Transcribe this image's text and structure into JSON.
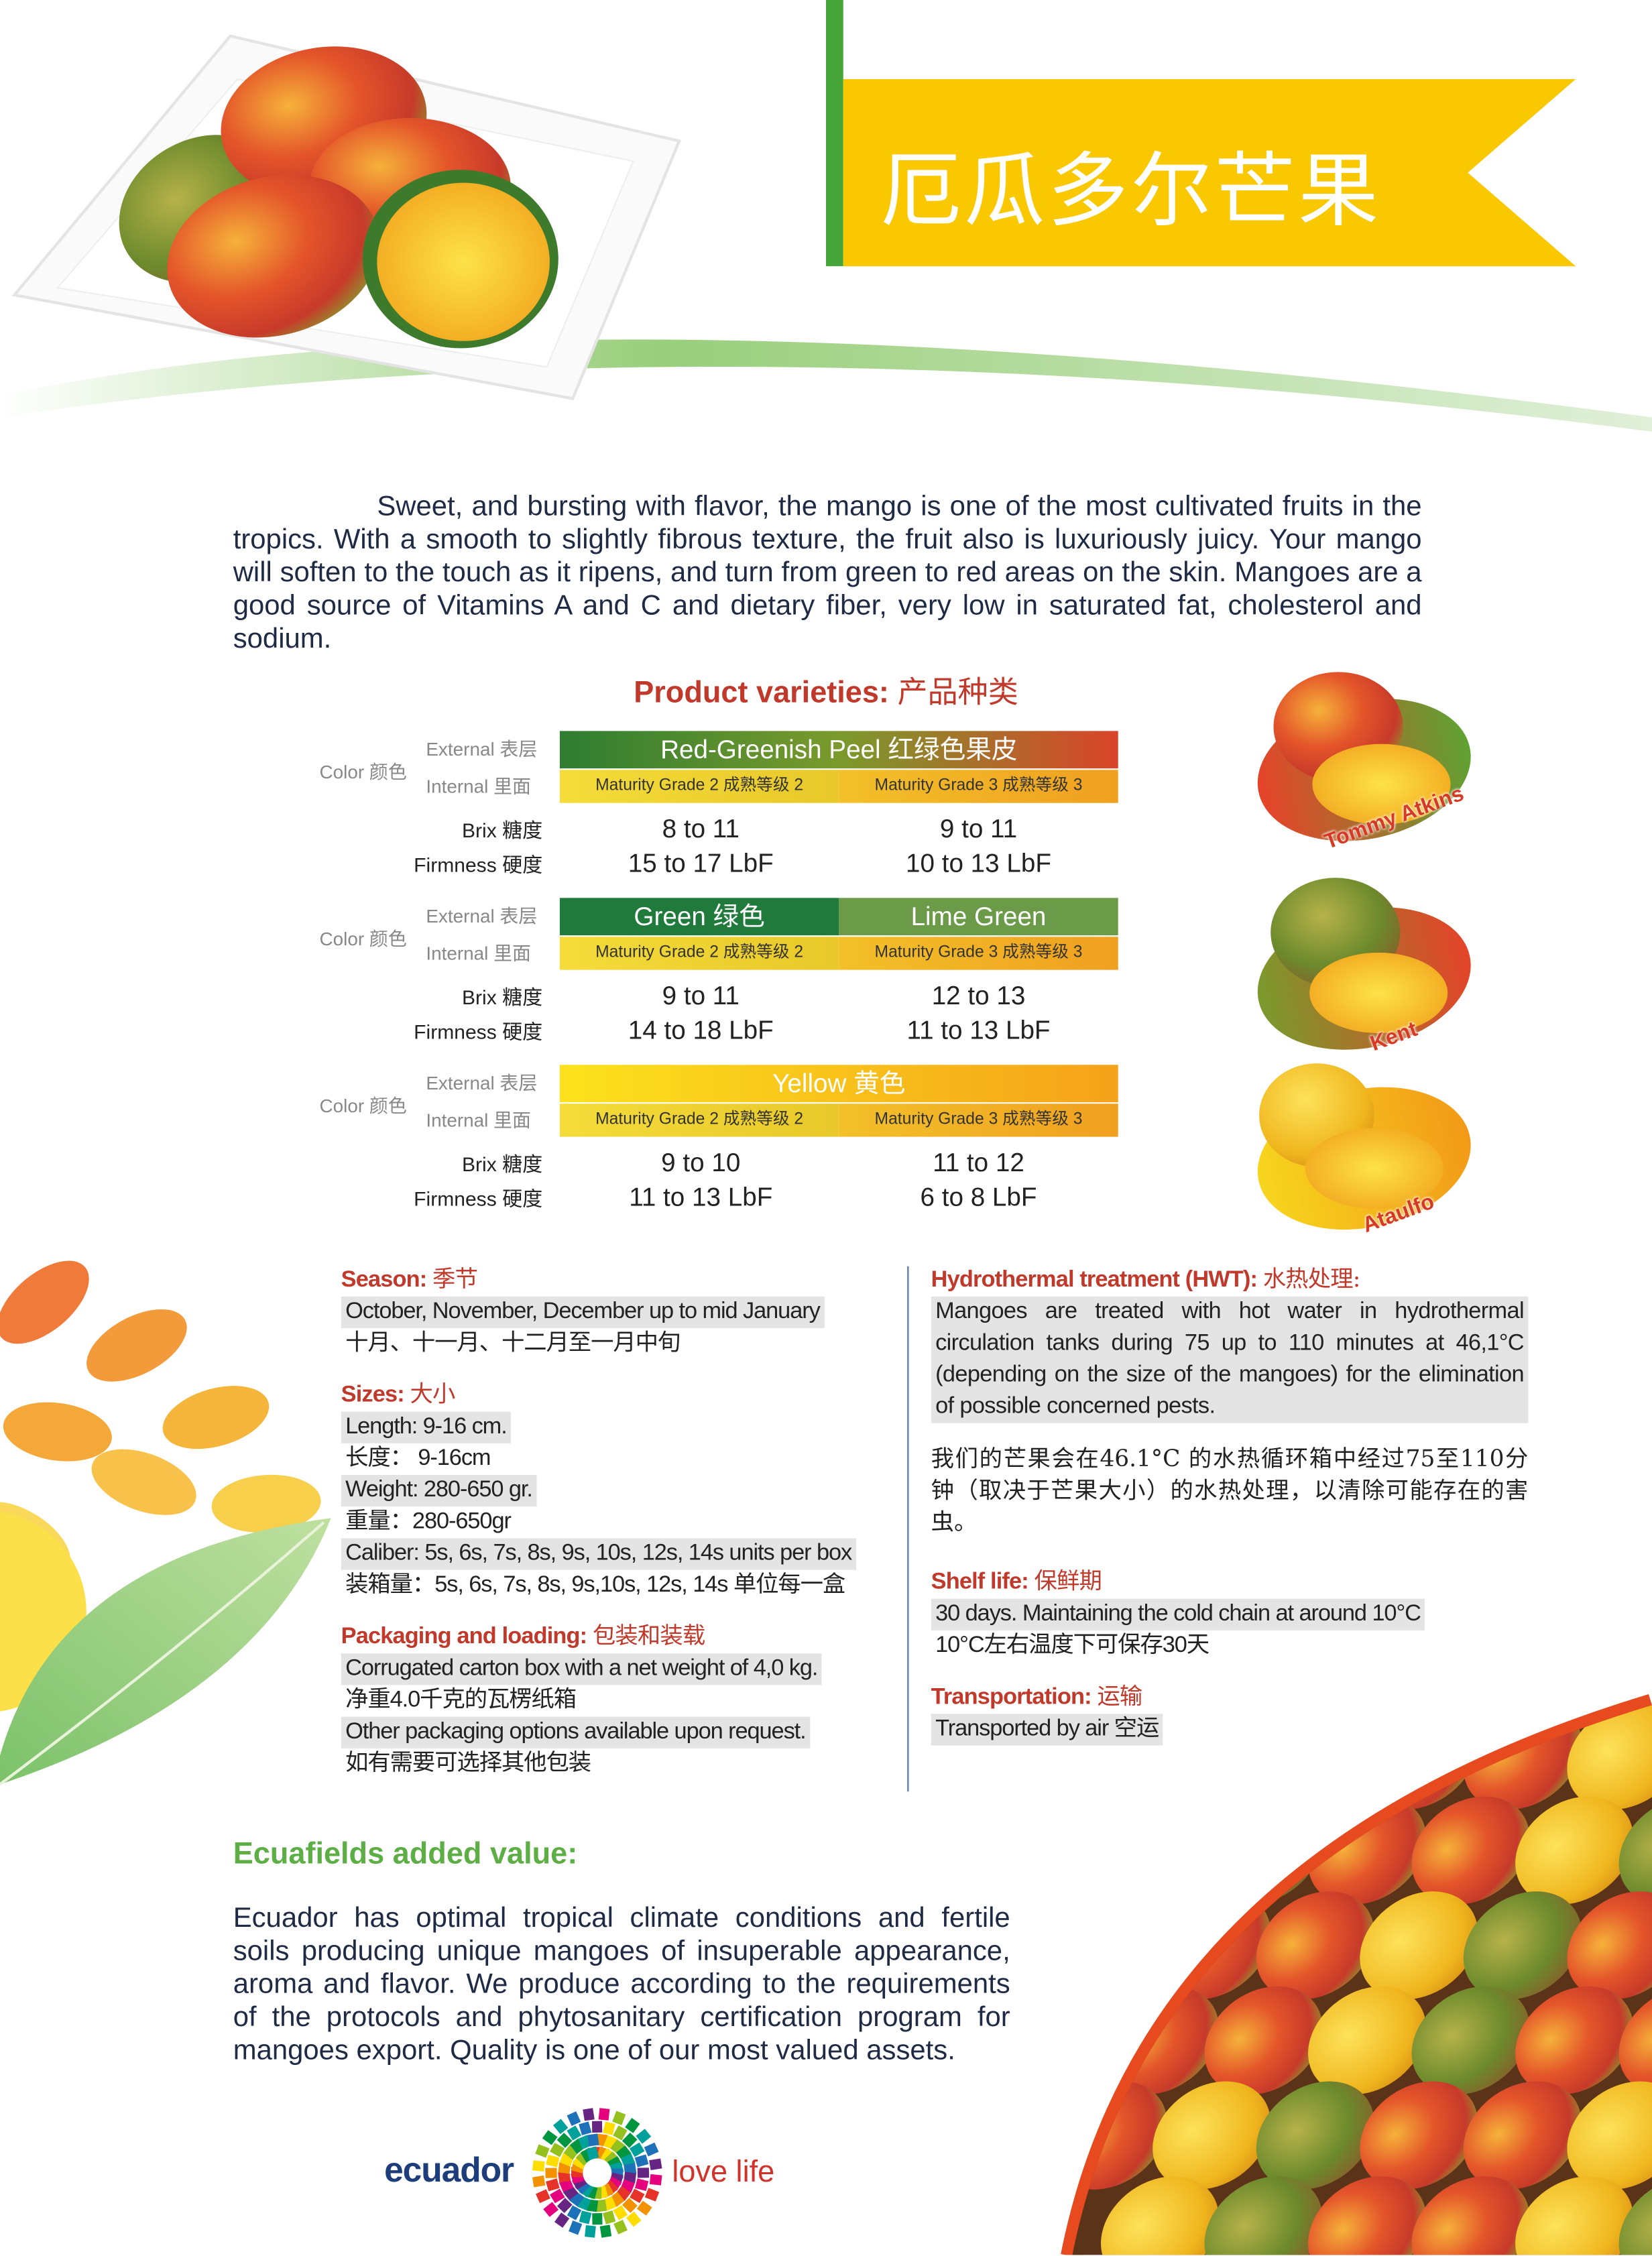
{
  "header": {
    "title": "厄瓜多尔芒果"
  },
  "intro": "Sweet, and bursting with flavor, the mango is one of the most cultivated fruits in the tropics. With a smooth to slightly fibrous texture, the fruit also is luxuriously juicy. Your mango will soften to the touch as it ripens, and turn from green to red areas on the skin. Mangoes are a good source of Vitamins A and C and dietary fiber, very low in saturated fat, cholesterol and sodium.",
  "varieties": {
    "title": "Product varieties:",
    "title_zh": "产品种类",
    "labels": {
      "color": "Color 颜色",
      "external": "External 表层",
      "internal": "Internal 里面",
      "brix": "Brix 糖度",
      "firmness": "Firmness 硬度"
    },
    "items": [
      {
        "name": "Tommy Atkins",
        "external": [
          "Red-Greenish Peel 红绿色果皮"
        ],
        "internal": [
          "Maturity Grade 2 成熟等级 2",
          "Maturity Grade 3 成熟等级 3"
        ],
        "brix": [
          "8 to 11",
          "9 to 11"
        ],
        "firmness": [
          "15 to 17 LbF",
          "10 to 13 LbF"
        ]
      },
      {
        "name": "Kent",
        "external": [
          "Green 绿色",
          "Lime Green"
        ],
        "internal": [
          "Maturity Grade 2 成熟等级 2",
          "Maturity Grade 3 成熟等级 3"
        ],
        "brix": [
          "9 to 11",
          "12 to 13"
        ],
        "firmness": [
          "14 to 18 LbF",
          "11 to 13 LbF"
        ]
      },
      {
        "name": "Ataulfo",
        "external": [
          "Yellow 黄色"
        ],
        "internal": [
          "Maturity Grade 2 成熟等级 2",
          "Maturity Grade 3 成熟等级 3"
        ],
        "brix": [
          "9 to 10",
          "11 to 12"
        ],
        "firmness": [
          "11 to 13 LbF",
          "6 to 8 LbF"
        ]
      }
    ]
  },
  "details_left": [
    {
      "heading": "Season:",
      "heading_zh": "季节",
      "lines": [
        {
          "text": "October, November, December up to mid January",
          "shaded": true
        },
        {
          "text": "十月、十一月、十二月至一月中旬",
          "shaded": false
        }
      ]
    },
    {
      "heading": "Sizes:",
      "heading_zh": "大小",
      "lines": [
        {
          "text": "Length: 9-16 cm.",
          "shaded": true
        },
        {
          "text": "长度： 9-16cm",
          "shaded": false
        },
        {
          "text": "Weight: 280-650 gr.",
          "shaded": true
        },
        {
          "text": "重量：280-650gr",
          "shaded": false
        },
        {
          "text": "Caliber: 5s, 6s, 7s, 8s, 9s, 10s, 12s, 14s units per box",
          "shaded": true
        },
        {
          "text": "装箱量：5s, 6s, 7s, 8s, 9s,10s, 12s, 14s 单位每一盒",
          "shaded": false
        }
      ]
    },
    {
      "heading": "Packaging and loading:",
      "heading_zh": "包装和装载",
      "lines": [
        {
          "text": "Corrugated carton box with a net weight of 4,0 kg.",
          "shaded": true
        },
        {
          "text": "净重4.0千克的瓦楞纸箱",
          "shaded": false
        },
        {
          "text": "Other packaging options available upon request.",
          "shaded": true
        },
        {
          "text": "如有需要可选择其他包装",
          "shaded": false
        }
      ]
    }
  ],
  "details_right": {
    "hwt": {
      "heading": "Hydrothermal treatment (HWT):",
      "heading_zh": "水热处理:",
      "text": "Mangoes are treated with hot water in hydrothermal circulation tanks during 75 up to 110 minutes at 46,1°C (depending on the size of the mangoes) for the elimination of possible concerned pests.",
      "text_zh": "我们的芒果会在46.1°C 的水热循环箱中经过75至110分钟（取决于芒果大小）的水热处理，以清除可能存在的害虫。"
    },
    "sections": [
      {
        "heading": "Shelf life:",
        "heading_zh": "保鲜期",
        "lines": [
          {
            "text": "30 days. Maintaining the cold chain at around 10°C",
            "shaded": true
          },
          {
            "text": "10°C左右温度下可保存30天",
            "shaded": false
          }
        ]
      },
      {
        "heading": "Transportation:",
        "heading_zh": "运输",
        "lines": [
          {
            "text": "Transported by air 空运",
            "shaded": true
          }
        ]
      }
    ]
  },
  "added_value": {
    "title": "Ecuafields added value:",
    "text": "Ecuador has optimal tropical climate conditions and fertile soils producing unique mangoes of insuperable appearance, aroma and flavor. We produce according to the requirements of the protocols and phytosanitary certification program for mangoes export. Quality is one of our most valued assets."
  },
  "logo": {
    "left": "ecuador",
    "right": "love life"
  }
}
